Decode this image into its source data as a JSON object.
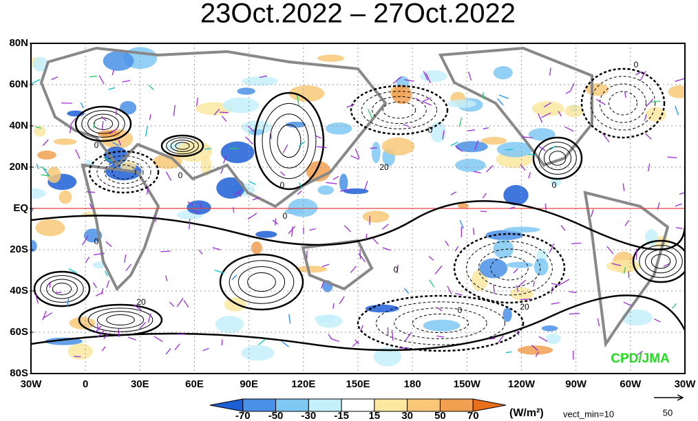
{
  "header": {
    "title": "23Oct.2022 – 27Oct.2022"
  },
  "map": {
    "lat_labels": [
      "80N",
      "60N",
      "40N",
      "20N",
      "EQ",
      "20S",
      "40S",
      "60S",
      "80S"
    ],
    "lon_labels": [
      "30W",
      "0",
      "30E",
      "60E",
      "90E",
      "120E",
      "150E",
      "180",
      "150W",
      "120W",
      "90W",
      "60W",
      "30W"
    ],
    "contour_labels": [
      "0",
      "0",
      "0",
      "0",
      "0",
      "0",
      "0",
      "0",
      "0",
      "20",
      "20",
      "20",
      "0"
    ],
    "credit": "CPD/JMA"
  },
  "colorbar": {
    "labels": [
      "-70",
      "-50",
      "-30",
      "-15",
      "15",
      "30",
      "50",
      "70"
    ],
    "colors": [
      "#1f5fd6",
      "#4a90e8",
      "#80c8f4",
      "#c4f0fc",
      "#ffffff",
      "#fce8a0",
      "#f8c878",
      "#f0a050",
      "#e8701c"
    ],
    "unit": "(W/m²)",
    "note": "vect_min=10",
    "vector_ref": "50"
  }
}
